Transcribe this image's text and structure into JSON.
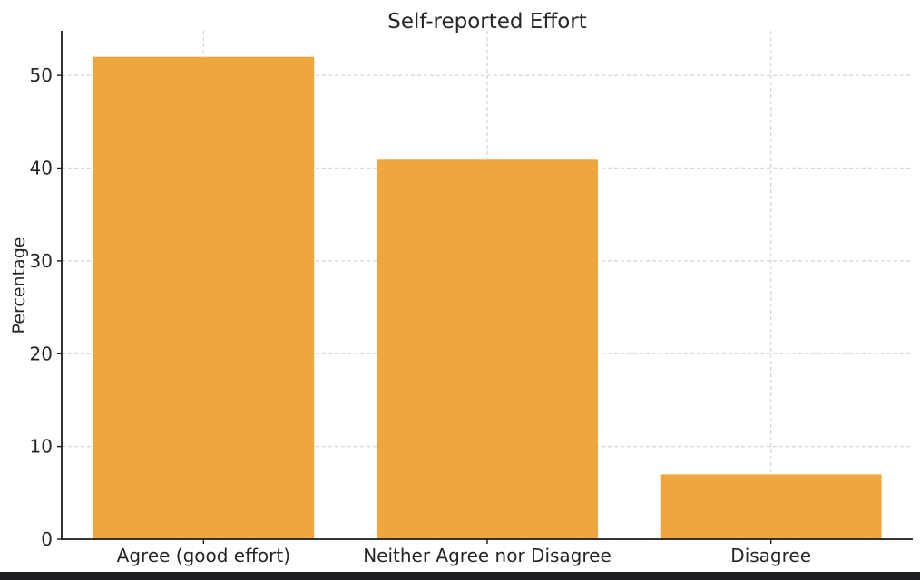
{
  "page": {
    "background_color": "#ffffff",
    "bottom_strip_color": "#202024"
  },
  "chart_data": {
    "type": "bar",
    "title": "Self-reported Effort",
    "xlabel": "",
    "ylabel": "Percentage",
    "categories": [
      "Agree (good effort)",
      "Neither Agree nor Disagree",
      "Disagree"
    ],
    "values": [
      52,
      41,
      7
    ],
    "yticks": [
      0,
      10,
      20,
      30,
      40,
      50
    ],
    "ylim": [
      0,
      54.8
    ],
    "bar_color": "#EFA73D",
    "grid": true,
    "grid_style": "dashed",
    "grid_color": "#d9d9d9",
    "axis_color": "#1a1a1a",
    "text_color": "#262626",
    "legend_position": "none"
  }
}
